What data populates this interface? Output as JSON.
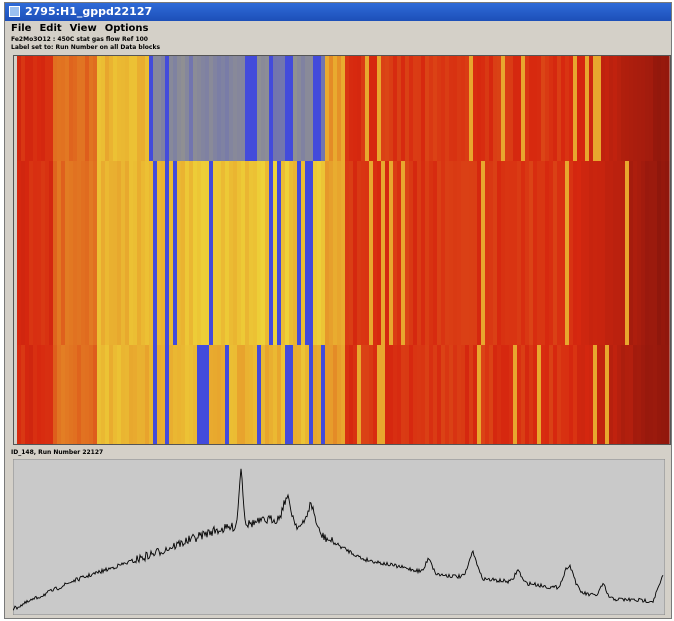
{
  "window": {
    "title": "2795:H1_gppd22127"
  },
  "menu": [
    "File",
    "Edit",
    "View",
    "Options"
  ],
  "panels": {
    "sample_label": "Fe2Mo3O12 : 450C stat gas flow Ref 100",
    "label_setting": "Label set to: Run Number on all Data blocks",
    "plot_label": "ID_148, Run Number 22127"
  }
}
